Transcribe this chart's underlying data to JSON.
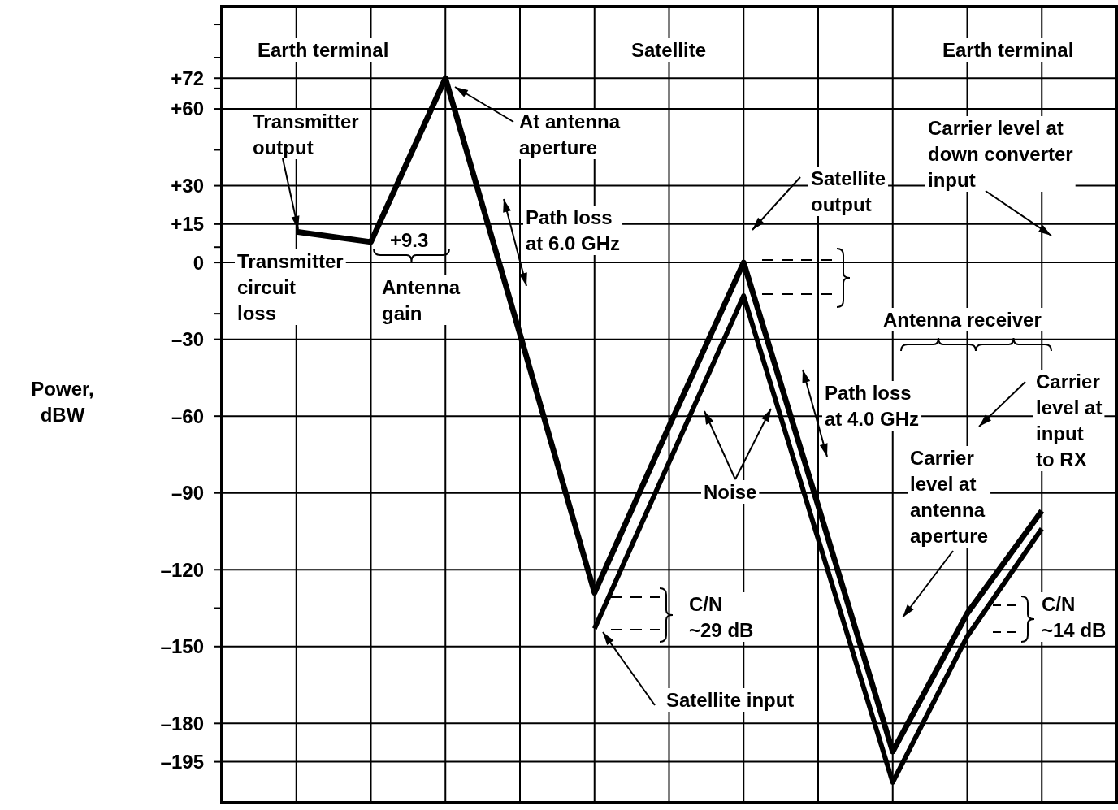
{
  "chart_data": {
    "type": "line",
    "ylabel": "Power,\ndBW",
    "categories": [
      null,
      null,
      null,
      null,
      null,
      null,
      null,
      null,
      null,
      null,
      null,
      null,
      null
    ],
    "ylim": [
      -211,
      100
    ],
    "yticks": [
      {
        "value": 93,
        "label": null
      },
      {
        "value": 80,
        "label": null
      },
      {
        "value": 72,
        "label": "+72"
      },
      {
        "value": 68,
        "label": null
      },
      {
        "value": 60,
        "label": "+60"
      },
      {
        "value": 44,
        "label": null
      },
      {
        "value": 30,
        "label": "+30"
      },
      {
        "value": 15,
        "label": "+15"
      },
      {
        "value": 6,
        "label": null
      },
      0,
      {
        "value": -20,
        "label": null
      },
      {
        "value": -30,
        "label": "–30"
      },
      {
        "value": -60,
        "label": "–60"
      },
      {
        "value": -90,
        "label": "–90"
      },
      {
        "value": -120,
        "label": "–120"
      },
      {
        "value": -135,
        "label": null
      },
      {
        "value": -150,
        "label": "–150"
      },
      {
        "value": -180,
        "label": "–180"
      },
      {
        "value": -195,
        "label": "–195"
      }
    ],
    "tick_labels": "y",
    "grid": true,
    "series": [
      {
        "color": "#000000",
        "values": [
          null,
          12,
          8,
          72,
          -28,
          -129,
          -64,
          0,
          -95,
          -191,
          -137,
          -97,
          null
        ]
      },
      {
        "color": "#000000",
        "values": [
          null,
          null,
          null,
          null,
          null,
          -143,
          -78,
          -13,
          -108,
          -203,
          -146,
          -104,
          null
        ]
      }
    ],
    "annotations": [
      "Earth terminal",
      "Satellite",
      "Earth terminal",
      "Transmitter\noutput",
      "At antenna\naperture",
      "Path loss\nat 6.0 GHz",
      "+9.3",
      "Transmitter\ncircuit\nloss",
      "Antenna\ngain",
      "Satellite\noutput",
      "Carrier level at\ndown converter\ninput",
      "Path loss\nat 4.0 GHz",
      "Antenna receiver",
      "Carrier\nlevel at\ninput\nto RX",
      "Carrier\nlevel at\nantenna\naperture",
      "Noise",
      "C/N\n~29 dB",
      "C/N\n~14 dB",
      "Satellite input"
    ]
  }
}
